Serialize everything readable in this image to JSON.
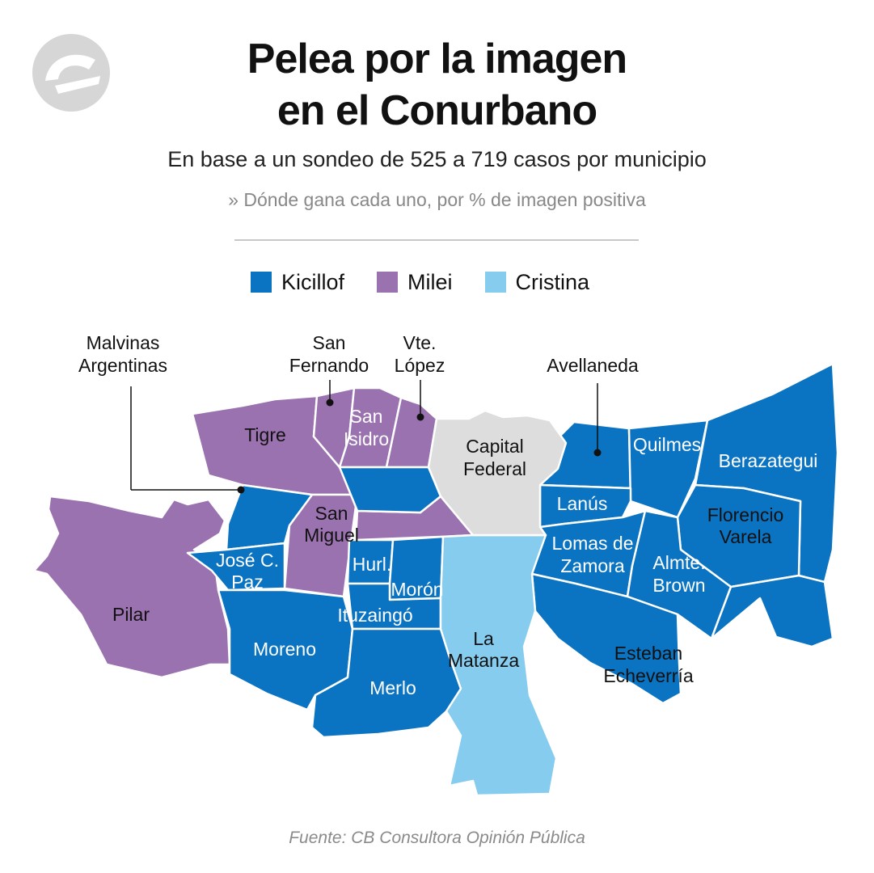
{
  "title_line1": "Pelea por la imagen",
  "title_line2": "en el Conurbano",
  "subtitle": "En base a un sondeo de 525 a 719 casos por municipio",
  "note": "» Dónde gana cada uno, por % de imagen positiva",
  "source": "Fuente: CB Consultora Opinión Pública",
  "logo_icon": "brand-logo-icon",
  "colors": {
    "kicillof": "#0A73C2",
    "milei": "#9A72B0",
    "cristina": "#86CCEE",
    "capital": "#DDDDDD",
    "border": "#ffffff"
  },
  "legend": [
    {
      "label": "Kicillof",
      "color": "#0A73C2"
    },
    {
      "label": "Milei",
      "color": "#9A72B0"
    },
    {
      "label": "Cristina",
      "color": "#86CCEE"
    }
  ],
  "municipios": {
    "tigre": {
      "name": "Tigre",
      "winner": "Milei"
    },
    "san_fernando": {
      "line1": "San",
      "line2": "Fernando",
      "winner": "Milei"
    },
    "san_isidro": {
      "line1": "San",
      "line2": "Isidro",
      "winner": "Milei"
    },
    "vte_lopez": {
      "line1": "Vte.",
      "line2": "López",
      "winner": "Milei"
    },
    "san_miguel": {
      "line1": "San",
      "line2": "Miguel",
      "winner": "Milei"
    },
    "pilar": {
      "name": "Pilar",
      "winner": "Milei"
    },
    "malvinas": {
      "line1": "Malvinas",
      "line2": "Argentinas",
      "winner": "Kicillof"
    },
    "jose_c_paz": {
      "line1": "José C.",
      "line2": "Paz",
      "winner": "Kicillof"
    },
    "moreno": {
      "name": "Moreno",
      "winner": "Kicillof"
    },
    "hurlingham": {
      "name": "Hurl.",
      "winner": "Kicillof"
    },
    "moron": {
      "name": "Morón",
      "winner": "Kicillof"
    },
    "ituzaingo": {
      "name": "Ituzaingó",
      "winner": "Kicillof"
    },
    "merlo": {
      "name": "Merlo",
      "winner": "Kicillof"
    },
    "la_matanza": {
      "line1": "La",
      "line2": "Matanza",
      "winner": "Cristina"
    },
    "capital": {
      "line1": "Capital",
      "line2": "Federal"
    },
    "avellaneda": {
      "name": "Avellaneda",
      "winner": "Kicillof"
    },
    "quilmes": {
      "name": "Quilmes",
      "winner": "Kicillof"
    },
    "berazategui": {
      "name": "Berazategui",
      "winner": "Kicillof"
    },
    "lanus": {
      "name": "Lanús",
      "winner": "Kicillof"
    },
    "florencio_varela": {
      "line1": "Florencio",
      "line2": "Varela",
      "winner": "Kicillof"
    },
    "lomas": {
      "line1": "Lomas de",
      "line2": "Zamora",
      "winner": "Kicillof"
    },
    "almte_brown": {
      "line1": "Almte.",
      "line2": "Brown",
      "winner": "Kicillof"
    },
    "echeverria": {
      "line1": "Esteban",
      "line2": "Echeverría",
      "winner": "Kicillof"
    }
  }
}
